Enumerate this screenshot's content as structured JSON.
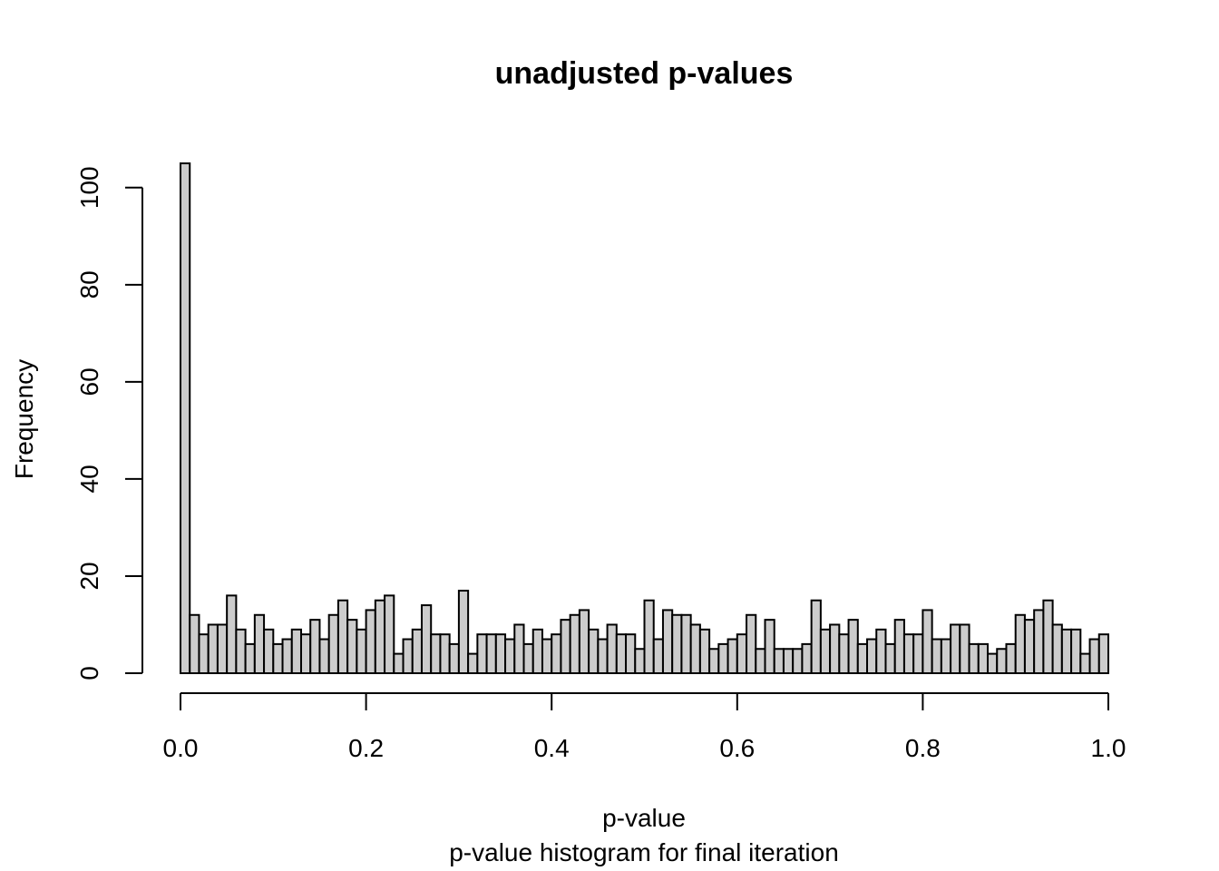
{
  "chart_data": {
    "type": "bar",
    "title": "unadjusted p-values",
    "xlabel": "p-value",
    "subtitle": "p-value histogram for final iteration",
    "ylabel": "Frequency",
    "xlim": [
      0,
      1
    ],
    "ylim": [
      0,
      105
    ],
    "x_ticks": [
      "0.0",
      "0.2",
      "0.4",
      "0.6",
      "0.8",
      "1.0"
    ],
    "y_ticks": [
      "0",
      "20",
      "40",
      "60",
      "80",
      "100"
    ],
    "bin_width": 0.01,
    "values": [
      105,
      12,
      8,
      10,
      10,
      16,
      9,
      6,
      12,
      9,
      6,
      7,
      9,
      8,
      11,
      7,
      12,
      15,
      11,
      9,
      13,
      15,
      16,
      4,
      7,
      9,
      14,
      8,
      8,
      6,
      17,
      4,
      8,
      8,
      8,
      7,
      10,
      6,
      9,
      7,
      8,
      11,
      12,
      13,
      9,
      7,
      10,
      8,
      8,
      5,
      15,
      7,
      13,
      12,
      12,
      10,
      9,
      5,
      6,
      7,
      8,
      12,
      5,
      11,
      5,
      5,
      5,
      6,
      15,
      9,
      10,
      8,
      11,
      6,
      7,
      9,
      6,
      11,
      8,
      8,
      13,
      7,
      7,
      10,
      10,
      6,
      6,
      4,
      5,
      6,
      12,
      11,
      13,
      15,
      10,
      9,
      9,
      4,
      7,
      8
    ],
    "bar_color": "#cccccc",
    "grid": false
  }
}
